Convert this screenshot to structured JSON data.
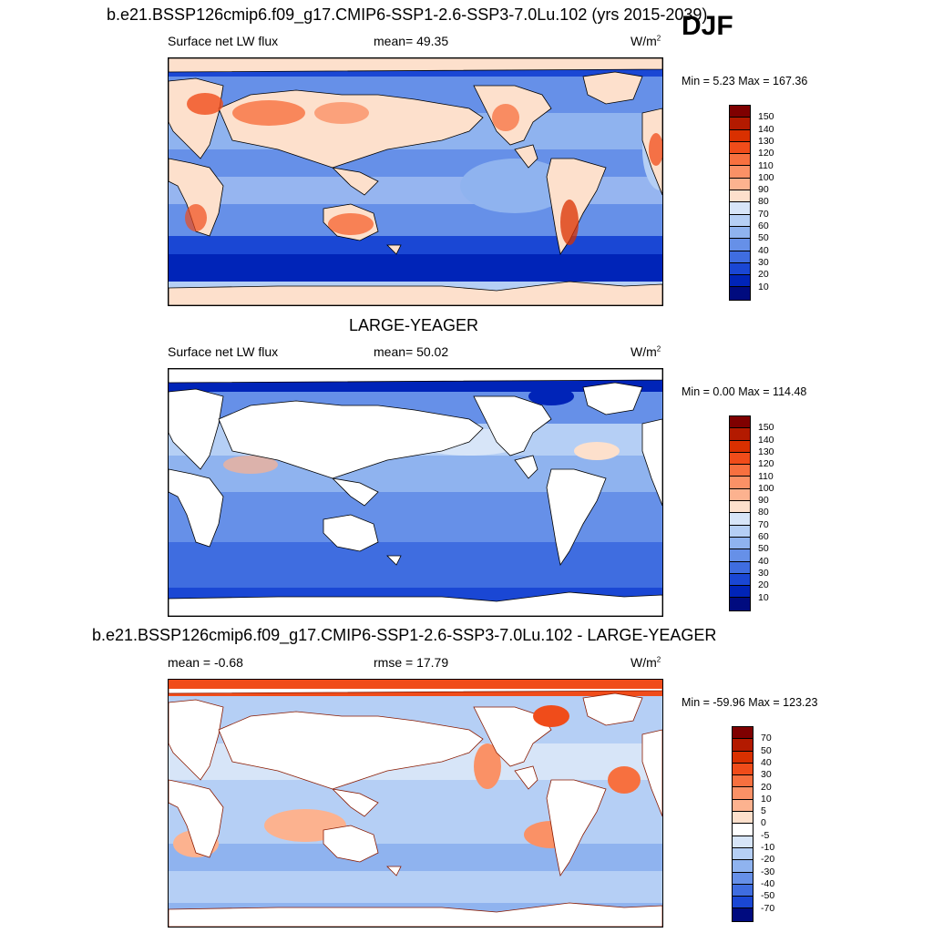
{
  "season": "DJF",
  "panels": [
    {
      "id": "model",
      "title": "b.e21.BSSP126cmip6.f09_g17.CMIP6-SSP1-2.6-SSP3-7.0Lu.102 (yrs 2015-2039)",
      "left_label": "Surface net LW flux",
      "mid_label": "mean=  49.35",
      "unit_base": "W/m",
      "unit_exp": "2",
      "minmax": "Min =   5.23 Max = 167.36",
      "ocean_only": false,
      "colorbar_ticks": [
        "150",
        "140",
        "130",
        "120",
        "110",
        "100",
        "90",
        "80",
        "70",
        "60",
        "50",
        "40",
        "30",
        "20",
        "10"
      ]
    },
    {
      "id": "obs",
      "title": "LARGE-YEAGER",
      "left_label": "Surface net LW flux",
      "mid_label": "mean=  50.02",
      "unit_base": "W/m",
      "unit_exp": "2",
      "minmax": "Min =   0.00 Max = 114.48",
      "ocean_only": true,
      "colorbar_ticks": [
        "150",
        "140",
        "130",
        "120",
        "110",
        "100",
        "90",
        "80",
        "70",
        "60",
        "50",
        "40",
        "30",
        "20",
        "10"
      ]
    },
    {
      "id": "diff",
      "title": "b.e21.BSSP126cmip6.f09_g17.CMIP6-SSP1-2.6-SSP3-7.0Lu.102 - LARGE-YEAGER",
      "left_label": "mean =  -0.68",
      "mid_label": "rmse =  17.79",
      "unit_base": "W/m",
      "unit_exp": "2",
      "minmax": "Min = -59.96 Max = 123.23",
      "ocean_only": true,
      "colorbar_ticks": [
        "70",
        "50",
        "40",
        "30",
        "20",
        "10",
        "5",
        "0",
        "-5",
        "-10",
        "-20",
        "-30",
        "-40",
        "-50",
        "-70"
      ]
    }
  ],
  "colors": {
    "abs_scale": [
      "#7f0000",
      "#b31a00",
      "#d93000",
      "#f04c1a",
      "#f7703f",
      "#fa9166",
      "#fcb28f",
      "#fde0cc",
      "#d7e5f8",
      "#b5cff5",
      "#8fb3ef",
      "#6690e8",
      "#3f6de0",
      "#1a47d4",
      "#0024b8",
      "#000b7f"
    ],
    "diff_scale": [
      "#7f0000",
      "#b31a00",
      "#d93000",
      "#f04c1a",
      "#f7703f",
      "#fa9166",
      "#fcb28f",
      "#fde0cc",
      "#ffffff",
      "#d7e5f8",
      "#b5cff5",
      "#8fb3ef",
      "#6690e8",
      "#3f6de0",
      "#1a47d4",
      "#000b7f"
    ]
  }
}
